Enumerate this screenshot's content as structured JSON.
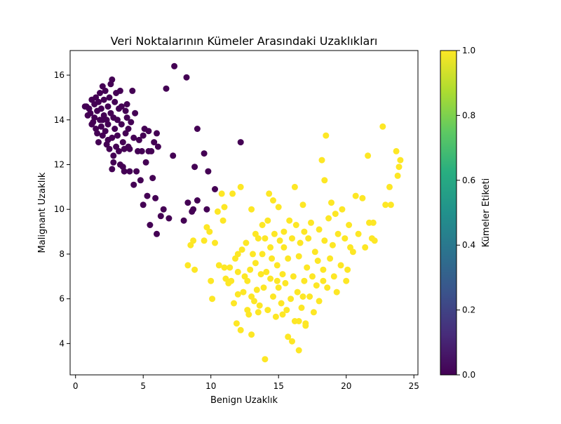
{
  "chart_data": {
    "type": "scatter",
    "title": "Veri Noktalarının Kümeler Arasındaki Uzaklıkları",
    "xlabel": "Benign Uzaklık",
    "ylabel": "Malignant Uzaklık",
    "xlim": [
      -0.4,
      25.3
    ],
    "ylim": [
      2.6,
      17.1
    ],
    "xticks": [
      0,
      5,
      10,
      15,
      20,
      25
    ],
    "yticks": [
      4,
      6,
      8,
      10,
      12,
      14,
      16
    ],
    "grid": false,
    "colorbar": {
      "label": "Kümeler Etiketi",
      "ticks": [
        "0.0",
        "0.2",
        "0.4",
        "0.6",
        "0.8",
        "1.0"
      ],
      "colormap": "viridis",
      "range": [
        0.0,
        1.0
      ]
    },
    "series": [
      {
        "cluster": 0,
        "color": "#440154",
        "points": [
          [
            0.7,
            14.6
          ],
          [
            0.8,
            14.6
          ],
          [
            0.9,
            14.2
          ],
          [
            1.0,
            14.5
          ],
          [
            1.1,
            14.3
          ],
          [
            1.2,
            14.9
          ],
          [
            1.3,
            13.9
          ],
          [
            1.2,
            13.8
          ],
          [
            1.4,
            14.7
          ],
          [
            1.4,
            14.1
          ],
          [
            1.5,
            13.6
          ],
          [
            1.5,
            15.0
          ],
          [
            1.6,
            14.4
          ],
          [
            1.6,
            13.4
          ],
          [
            1.7,
            13.0
          ],
          [
            1.7,
            14.8
          ],
          [
            1.8,
            15.2
          ],
          [
            1.8,
            14.0
          ],
          [
            1.9,
            13.7
          ],
          [
            1.9,
            14.5
          ],
          [
            2.0,
            15.5
          ],
          [
            2.0,
            13.3
          ],
          [
            2.1,
            14.2
          ],
          [
            2.1,
            14.9
          ],
          [
            2.2,
            13.5
          ],
          [
            2.2,
            15.3
          ],
          [
            2.3,
            14.0
          ],
          [
            2.3,
            12.9
          ],
          [
            2.4,
            14.6
          ],
          [
            2.4,
            13.8
          ],
          [
            2.5,
            15.0
          ],
          [
            2.5,
            12.7
          ],
          [
            2.6,
            14.3
          ],
          [
            2.6,
            15.6
          ],
          [
            2.7,
            13.2
          ],
          [
            2.7,
            15.8
          ],
          [
            2.8,
            14.1
          ],
          [
            2.8,
            12.4
          ],
          [
            2.8,
            12.1
          ],
          [
            2.7,
            11.8
          ],
          [
            2.9,
            14.8
          ],
          [
            2.9,
            13.6
          ],
          [
            3.0,
            15.2
          ],
          [
            3.0,
            12.8
          ],
          [
            3.1,
            14.0
          ],
          [
            3.1,
            13.3
          ],
          [
            3.2,
            14.5
          ],
          [
            3.2,
            12.6
          ],
          [
            3.3,
            15.3
          ],
          [
            3.3,
            12.0
          ],
          [
            3.4,
            13.8
          ],
          [
            3.4,
            14.6
          ],
          [
            3.5,
            13.0
          ],
          [
            3.5,
            11.9
          ],
          [
            3.6,
            11.7
          ],
          [
            3.6,
            12.7
          ],
          [
            3.7,
            14.4
          ],
          [
            3.7,
            13.4
          ],
          [
            3.8,
            14.7
          ],
          [
            3.8,
            14.1
          ],
          [
            3.9,
            13.6
          ],
          [
            3.9,
            12.8
          ],
          [
            4.0,
            12.7
          ],
          [
            4.0,
            11.7
          ],
          [
            4.1,
            13.9
          ],
          [
            4.2,
            15.3
          ],
          [
            4.3,
            11.1
          ],
          [
            4.3,
            13.2
          ],
          [
            4.4,
            14.3
          ],
          [
            4.5,
            11.7
          ],
          [
            4.6,
            12.6
          ],
          [
            4.7,
            13.1
          ],
          [
            4.8,
            11.3
          ],
          [
            4.9,
            12.6
          ],
          [
            5.0,
            10.2
          ],
          [
            5.0,
            13.3
          ],
          [
            5.1,
            13.6
          ],
          [
            5.2,
            12.1
          ],
          [
            5.3,
            10.6
          ],
          [
            5.4,
            13.5
          ],
          [
            5.4,
            12.6
          ],
          [
            5.5,
            9.3
          ],
          [
            5.6,
            12.6
          ],
          [
            5.7,
            11.4
          ],
          [
            5.8,
            13.0
          ],
          [
            5.9,
            10.5
          ],
          [
            6.0,
            8.9
          ],
          [
            6.0,
            13.4
          ],
          [
            6.1,
            12.8
          ],
          [
            6.3,
            9.7
          ],
          [
            6.5,
            10.0
          ],
          [
            6.7,
            15.4
          ],
          [
            6.9,
            9.6
          ],
          [
            7.2,
            12.4
          ],
          [
            7.3,
            16.4
          ],
          [
            8.0,
            9.5
          ],
          [
            8.2,
            15.9
          ],
          [
            8.3,
            10.3
          ],
          [
            8.6,
            9.9
          ],
          [
            8.7,
            10.0
          ],
          [
            8.8,
            11.9
          ],
          [
            9.0,
            13.6
          ],
          [
            9.0,
            10.4
          ],
          [
            9.5,
            12.5
          ],
          [
            9.7,
            10.0
          ],
          [
            9.8,
            11.7
          ],
          [
            10.3,
            10.9
          ],
          [
            12.2,
            13.0
          ],
          [
            2.0,
            14.0
          ],
          [
            2.4,
            13.1
          ]
        ]
      },
      {
        "cluster": 1,
        "color": "#fde725",
        "points": [
          [
            8.3,
            7.5
          ],
          [
            8.5,
            8.4
          ],
          [
            8.7,
            8.6
          ],
          [
            8.8,
            7.3
          ],
          [
            9.5,
            8.6
          ],
          [
            9.7,
            9.2
          ],
          [
            9.9,
            9.0
          ],
          [
            10.0,
            6.8
          ],
          [
            10.1,
            6.0
          ],
          [
            10.3,
            8.5
          ],
          [
            10.5,
            9.9
          ],
          [
            10.6,
            7.5
          ],
          [
            10.8,
            10.7
          ],
          [
            10.9,
            9.5
          ],
          [
            11.0,
            10.1
          ],
          [
            11.0,
            7.4
          ],
          [
            11.1,
            6.9
          ],
          [
            11.3,
            6.7
          ],
          [
            11.4,
            7.4
          ],
          [
            11.5,
            6.8
          ],
          [
            11.6,
            10.7
          ],
          [
            11.7,
            5.8
          ],
          [
            11.8,
            7.8
          ],
          [
            11.9,
            4.9
          ],
          [
            12.0,
            8.0
          ],
          [
            12.0,
            6.2
          ],
          [
            12.2,
            11.0
          ],
          [
            12.2,
            4.6
          ],
          [
            12.3,
            8.2
          ],
          [
            12.4,
            6.3
          ],
          [
            12.5,
            7.0
          ],
          [
            12.6,
            8.5
          ],
          [
            12.7,
            6.8
          ],
          [
            12.8,
            5.3
          ],
          [
            12.9,
            7.3
          ],
          [
            13.0,
            10.0
          ],
          [
            13.0,
            4.4
          ],
          [
            13.1,
            8.0
          ],
          [
            13.2,
            5.9
          ],
          [
            13.3,
            8.9
          ],
          [
            13.3,
            7.6
          ],
          [
            13.4,
            6.4
          ],
          [
            13.5,
            8.7
          ],
          [
            13.6,
            5.7
          ],
          [
            13.7,
            7.1
          ],
          [
            13.8,
            9.3
          ],
          [
            13.8,
            8.0
          ],
          [
            13.9,
            6.5
          ],
          [
            14.0,
            3.3
          ],
          [
            14.0,
            8.7
          ],
          [
            14.1,
            7.2
          ],
          [
            14.2,
            9.5
          ],
          [
            14.2,
            5.5
          ],
          [
            14.3,
            10.7
          ],
          [
            14.4,
            6.9
          ],
          [
            14.4,
            8.3
          ],
          [
            14.5,
            7.8
          ],
          [
            14.6,
            6.1
          ],
          [
            14.6,
            10.4
          ],
          [
            14.7,
            8.9
          ],
          [
            14.8,
            5.2
          ],
          [
            14.9,
            7.5
          ],
          [
            15.0,
            6.5
          ],
          [
            15.0,
            10.1
          ],
          [
            15.1,
            8.6
          ],
          [
            15.2,
            5.8
          ],
          [
            15.3,
            7.1
          ],
          [
            15.4,
            8.3
          ],
          [
            15.4,
            9.0
          ],
          [
            15.5,
            6.7
          ],
          [
            15.6,
            5.5
          ],
          [
            15.7,
            7.8
          ],
          [
            15.7,
            4.3
          ],
          [
            15.8,
            9.5
          ],
          [
            15.9,
            6.0
          ],
          [
            16.0,
            8.7
          ],
          [
            16.0,
            4.1
          ],
          [
            16.1,
            7.0
          ],
          [
            16.2,
            11.0
          ],
          [
            16.2,
            5.0
          ],
          [
            16.3,
            9.3
          ],
          [
            16.4,
            6.3
          ],
          [
            16.5,
            7.9
          ],
          [
            16.5,
            3.7
          ],
          [
            16.6,
            8.5
          ],
          [
            16.7,
            5.6
          ],
          [
            16.8,
            10.2
          ],
          [
            16.9,
            6.8
          ],
          [
            16.9,
            9.0
          ],
          [
            17.0,
            4.9
          ],
          [
            17.1,
            7.4
          ],
          [
            17.2,
            8.7
          ],
          [
            17.3,
            6.1
          ],
          [
            17.4,
            9.4
          ],
          [
            17.5,
            7.0
          ],
          [
            17.6,
            5.4
          ],
          [
            17.7,
            8.1
          ],
          [
            17.8,
            6.6
          ],
          [
            17.9,
            7.7
          ],
          [
            18.0,
            9.1
          ],
          [
            18.0,
            5.9
          ],
          [
            18.2,
            12.2
          ],
          [
            18.3,
            7.3
          ],
          [
            18.4,
            8.6
          ],
          [
            18.4,
            11.3
          ],
          [
            18.5,
            13.3
          ],
          [
            18.6,
            6.5
          ],
          [
            18.7,
            9.6
          ],
          [
            18.8,
            7.8
          ],
          [
            18.9,
            10.3
          ],
          [
            19.0,
            8.4
          ],
          [
            19.1,
            7.0
          ],
          [
            19.2,
            9.8
          ],
          [
            19.3,
            6.3
          ],
          [
            19.4,
            8.9
          ],
          [
            19.6,
            7.5
          ],
          [
            19.7,
            10.0
          ],
          [
            19.9,
            8.7
          ],
          [
            20.0,
            6.8
          ],
          [
            20.1,
            7.3
          ],
          [
            20.2,
            9.3
          ],
          [
            20.3,
            8.3
          ],
          [
            20.5,
            8.1
          ],
          [
            20.7,
            10.6
          ],
          [
            20.9,
            8.9
          ],
          [
            21.2,
            10.5
          ],
          [
            21.4,
            8.3
          ],
          [
            21.6,
            12.4
          ],
          [
            21.7,
            9.4
          ],
          [
            21.9,
            8.7
          ],
          [
            22.0,
            9.4
          ],
          [
            22.1,
            8.6
          ],
          [
            22.7,
            13.7
          ],
          [
            22.9,
            10.2
          ],
          [
            23.2,
            11.0
          ],
          [
            23.3,
            10.2
          ],
          [
            23.7,
            12.6
          ],
          [
            23.8,
            11.5
          ],
          [
            23.9,
            11.9
          ],
          [
            24.0,
            12.2
          ],
          [
            12.7,
            5.5
          ],
          [
            13.5,
            5.4
          ],
          [
            15.3,
            5.3
          ],
          [
            16.5,
            5.0
          ],
          [
            17.0,
            4.8
          ],
          [
            14.9,
            6.8
          ],
          [
            16.8,
            6.1
          ],
          [
            18.3,
            6.8
          ],
          [
            12.0,
            7.2
          ],
          [
            13.0,
            6.1
          ]
        ]
      }
    ]
  }
}
